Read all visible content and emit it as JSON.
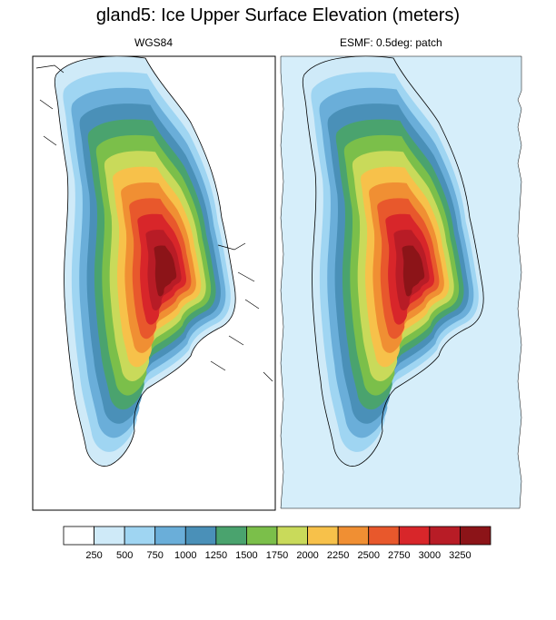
{
  "title": "gland5: Ice Upper Surface Elevation (meters)",
  "chart_data": [
    {
      "type": "heatmap",
      "title": "WGS84",
      "description_type": "filled contour map",
      "levels": [
        250,
        500,
        750,
        1000,
        1250,
        1500,
        1750,
        2000,
        2250,
        2500,
        2750,
        3000,
        3250
      ],
      "summit_elevation_approx": 3250,
      "grid": false
    },
    {
      "type": "heatmap",
      "title": "ESMF: 0.5deg: patch",
      "levels": [
        250,
        500,
        750,
        1000,
        1250,
        1500,
        1750,
        2000,
        2250,
        2500,
        2750,
        3000,
        3250
      ],
      "summit_elevation_approx": 3250,
      "grid": false
    }
  ],
  "colorbar": {
    "labels": [
      "250",
      "500",
      "750",
      "1000",
      "1250",
      "1500",
      "1750",
      "2000",
      "2250",
      "2500",
      "2750",
      "3000",
      "3250"
    ],
    "colors": [
      "#ffffff",
      "#cfeaf8",
      "#9fd5f2",
      "#6aaed9",
      "#4a90b8",
      "#4aa36e",
      "#7bbf4a",
      "#c9da5a",
      "#f7c14a",
      "#f08f33",
      "#e8582c",
      "#d8262a",
      "#b81c26",
      "#8c1418"
    ]
  },
  "colors": {
    "ocean_background_right": "#d6eefa",
    "coastline": "#000000"
  }
}
